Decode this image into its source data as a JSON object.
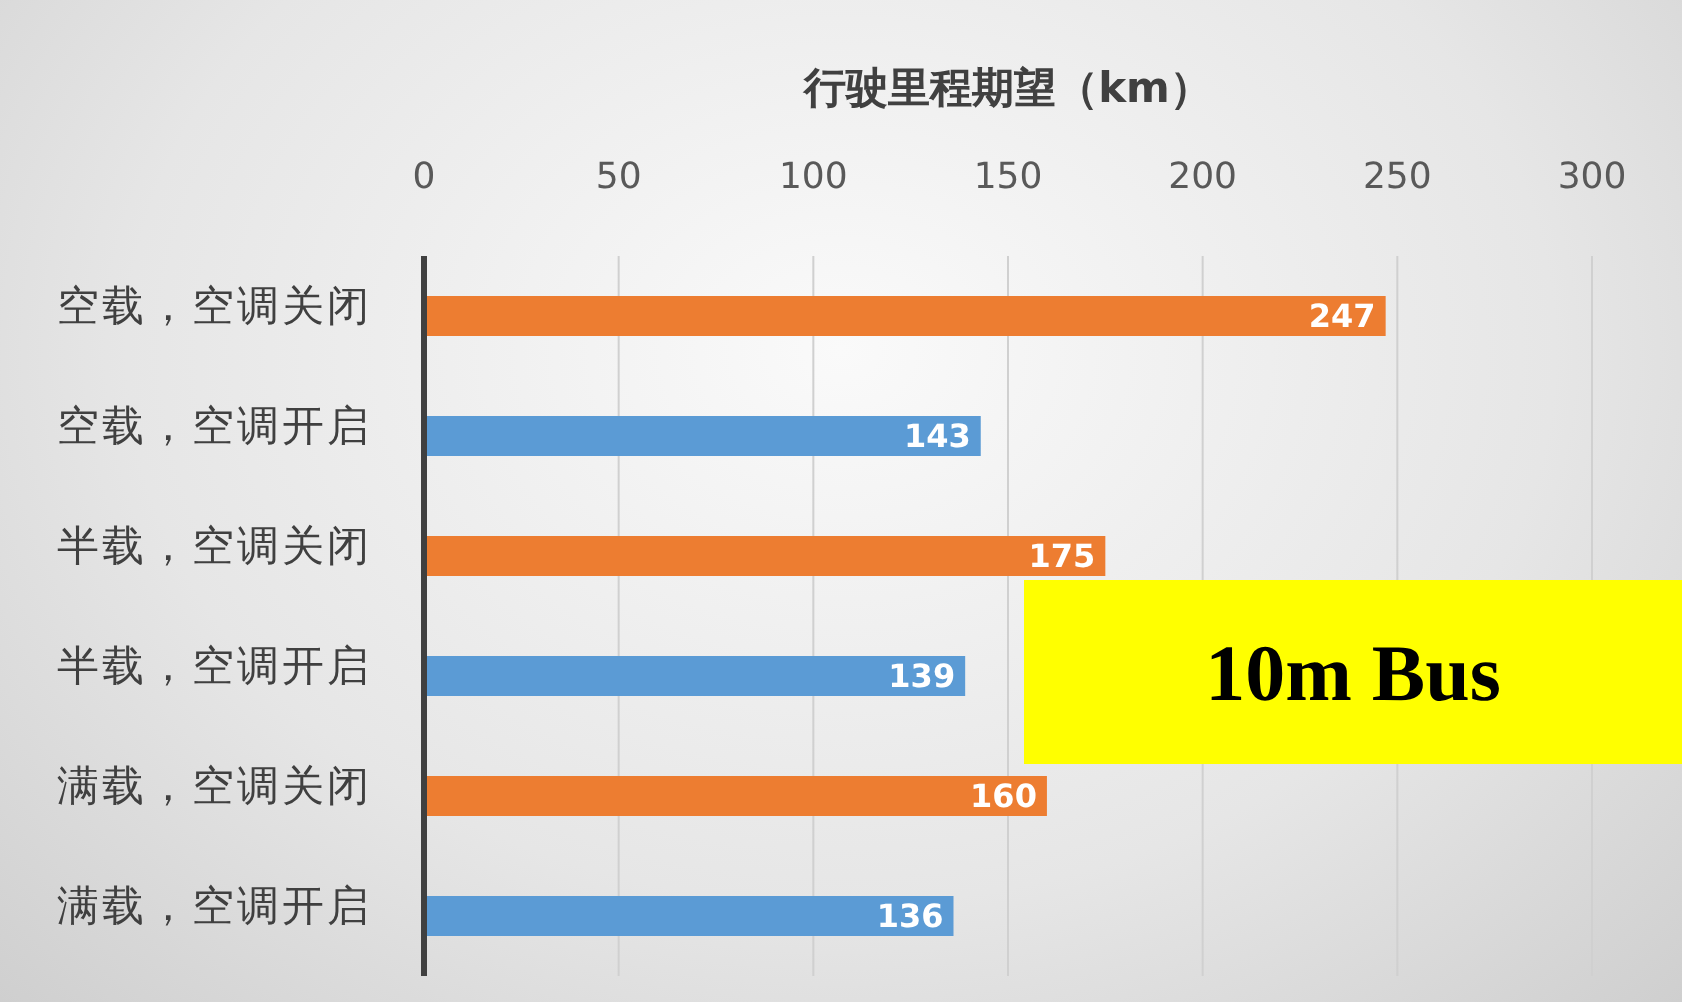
{
  "chart_data": {
    "type": "bar",
    "orientation": "horizontal",
    "xlabel": "行驶里程期望（km）",
    "categories": [
      "空载，空调关闭",
      "空载，空调开启",
      "半载，空调关闭",
      "半载，空调开启",
      "满载，空调关闭",
      "满载，空调开启"
    ],
    "values": [
      247,
      143,
      175,
      139,
      160,
      136
    ],
    "colors": [
      "#ed7d31",
      "#5b9bd5",
      "#ed7d31",
      "#5b9bd5",
      "#ed7d31",
      "#5b9bd5"
    ],
    "xlim": [
      0,
      300
    ],
    "xticks": [
      0,
      50,
      100,
      150,
      200,
      250,
      300
    ],
    "grid": "x",
    "data_labels": true,
    "annotations": [
      "10m Bus"
    ]
  }
}
